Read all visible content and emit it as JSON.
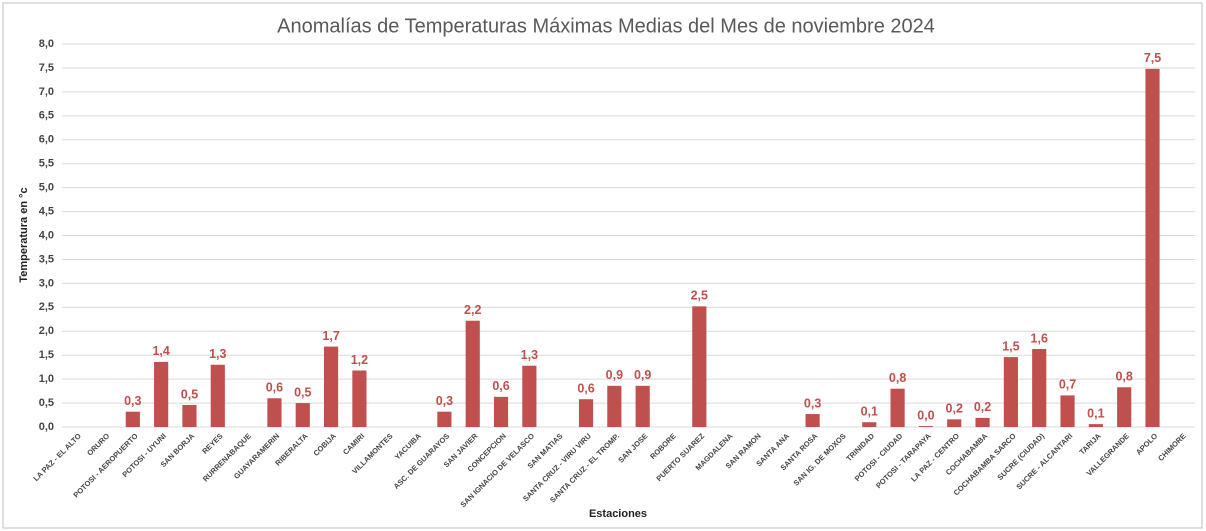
{
  "chart_data": {
    "type": "bar",
    "title": "Anomalías de Temperaturas Máximas Medias del Mes de noviembre 2024",
    "x_label": "Estaciones",
    "y_label": "Temperatura en °c",
    "color": "#c0504d",
    "grid": true,
    "categories": [
      "LA PAZ - EL ALTO",
      "ORURO",
      "POTOSI - AEROPUERTO",
      "POTOSI - UYUNI",
      "SAN BORJA",
      "REYES",
      "RURRENABAQUE",
      "GUAYARAMERIN",
      "RIBERALTA",
      "COBIJA",
      "CAMIRI",
      "VILLAMONTES",
      "YACUIBA",
      "ASC. DE GUARAYOS",
      "SAN JAVIER",
      "CONCEPCION",
      "SAN IGNACIO DE VELASCO",
      "SAN MATIAS",
      "SANTA CRUZ - VIRU VIRU",
      "SANTA CRUZ - EL TROMP.",
      "SAN JOSE",
      "ROBORE",
      "PUERTO SUAREZ",
      "MAGDALENA",
      "SAN RAMON",
      "SANTA ANA",
      "SANTA ROSA",
      "SAN IG. DE MOXOS",
      "TRINIDAD",
      "POTOSI - CIUDAD",
      "POTOSI - TARAPAYA",
      "LA PAZ - CENTRO",
      "COCHABAMBA",
      "COCHABAMBA SARCO",
      "SUCRE (CIUDAD)",
      "SUCRE - ALCANTARI",
      "TARIJA",
      "VALLEGRANDE",
      "APOLO",
      "CHIMORE"
    ],
    "values": [
      null,
      null,
      0.32,
      1.36,
      0.46,
      1.3,
      null,
      0.6,
      0.5,
      1.68,
      1.18,
      null,
      null,
      0.32,
      2.22,
      0.63,
      1.28,
      null,
      0.58,
      0.86,
      0.86,
      null,
      2.52,
      null,
      null,
      null,
      0.27,
      null,
      0.1,
      0.8,
      0.02,
      0.16,
      0.19,
      1.46,
      1.63,
      0.66,
      0.06,
      0.83,
      7.48,
      null
    ],
    "value_labels": [
      null,
      null,
      "0,3",
      "1,4",
      "0,5",
      "1,3",
      null,
      "0,6",
      "0,5",
      "1,7",
      "1,2",
      null,
      null,
      "0,3",
      "2,2",
      "0,6",
      "1,3",
      null,
      "0,6",
      "0,9",
      "0,9",
      null,
      "2,5",
      null,
      null,
      null,
      "0,3",
      null,
      "0,1",
      "0,8",
      "0,0",
      "0,2",
      "0,2",
      "1,5",
      "1,6",
      "0,7",
      "0,1",
      "0,8",
      "7,5",
      null
    ],
    "ylim": [
      0,
      8
    ],
    "yticks": [
      {
        "value": 0,
        "label": "0,0"
      },
      {
        "value": 0.5,
        "label": "0,5"
      },
      {
        "value": 1,
        "label": "1,0"
      },
      {
        "value": 1.5,
        "label": "1,5"
      },
      {
        "value": 2,
        "label": "2,0"
      },
      {
        "value": 2.5,
        "label": "2,5"
      },
      {
        "value": 3,
        "label": "3,0"
      },
      {
        "value": 3.5,
        "label": "3,5"
      },
      {
        "value": 4,
        "label": "4,0"
      },
      {
        "value": 4.5,
        "label": "4,5"
      },
      {
        "value": 5,
        "label": "5,0"
      },
      {
        "value": 5.5,
        "label": "5,5"
      },
      {
        "value": 6,
        "label": "6,0"
      },
      {
        "value": 6.5,
        "label": "6,5"
      },
      {
        "value": 7,
        "label": "7,0"
      },
      {
        "value": 7.5,
        "label": "7,5"
      },
      {
        "value": 8,
        "label": "8,0"
      }
    ]
  }
}
